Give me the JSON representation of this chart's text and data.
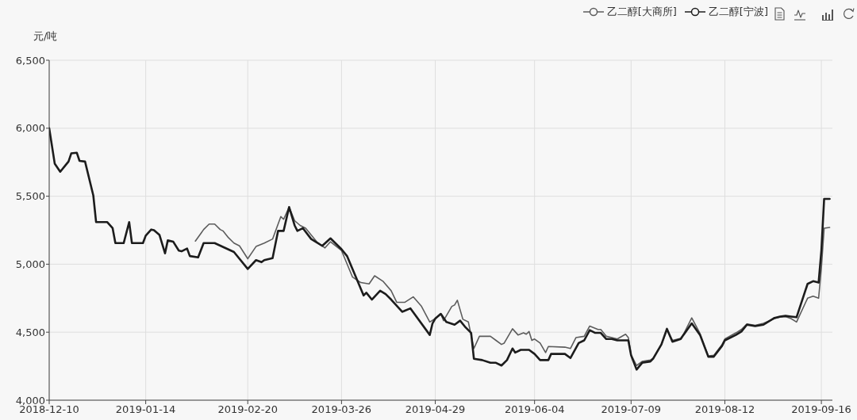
{
  "chart_data": {
    "type": "line",
    "ylabel": "元/吨",
    "xlim": [
      "2018-12-10",
      "2019-09-20"
    ],
    "xticks": [
      "2018-12-10",
      "2019-01-14",
      "2019-02-20",
      "2019-03-26",
      "2019-04-29",
      "2019-06-04",
      "2019-07-09",
      "2019-08-12",
      "2019-09-16"
    ],
    "ylim": [
      4000,
      6500
    ],
    "yticks": [
      {
        "value": 4000,
        "label": "4,000"
      },
      {
        "value": 4500,
        "label": "4,500"
      },
      {
        "value": 5000,
        "label": "5,000"
      },
      {
        "value": 5500,
        "label": "5,500"
      },
      {
        "value": 6000,
        "label": "6,000"
      },
      {
        "value": 6500,
        "label": "6,500"
      }
    ],
    "grid": true,
    "legend": "top right",
    "series": [
      {
        "name": "乙二醇[大商所]",
        "color": "#5c5c5c",
        "x": [
          "2019-02-01",
          "2019-02-04",
          "2019-02-06",
          "2019-02-08",
          "2019-02-10",
          "2019-02-11",
          "2019-02-13",
          "2019-02-15",
          "2019-02-17",
          "2019-02-20",
          "2019-02-23",
          "2019-02-26",
          "2019-03-01",
          "2019-03-04",
          "2019-03-05",
          "2019-03-07",
          "2019-03-09",
          "2019-03-11",
          "2019-03-13",
          "2019-03-17",
          "2019-03-20",
          "2019-03-22",
          "2019-03-26",
          "2019-03-30",
          "2019-04-02",
          "2019-04-05",
          "2019-04-07",
          "2019-04-10",
          "2019-04-13",
          "2019-04-15",
          "2019-04-18",
          "2019-04-21",
          "2019-04-24",
          "2019-04-27",
          "2019-04-29",
          "2019-05-01",
          "2019-05-02",
          "2019-05-05",
          "2019-05-06",
          "2019-05-07",
          "2019-05-09",
          "2019-05-11",
          "2019-05-13",
          "2019-05-15",
          "2019-05-19",
          "2019-05-21",
          "2019-05-23",
          "2019-05-24",
          "2019-05-27",
          "2019-05-29",
          "2019-05-31",
          "2019-06-01",
          "2019-06-02",
          "2019-06-03",
          "2019-06-04",
          "2019-06-06",
          "2019-06-08",
          "2019-06-09",
          "2019-06-15",
          "2019-06-17",
          "2019-06-19",
          "2019-06-22",
          "2019-06-24",
          "2019-06-27",
          "2019-06-28",
          "2019-06-30",
          "2019-07-02",
          "2019-07-04",
          "2019-07-07",
          "2019-07-08",
          "2019-07-09",
          "2019-07-11",
          "2019-07-13",
          "2019-07-16",
          "2019-07-17",
          "2019-07-20",
          "2019-07-22",
          "2019-07-24",
          "2019-07-27",
          "2019-07-28",
          "2019-07-31",
          "2019-08-03",
          "2019-08-06",
          "2019-08-08",
          "2019-08-11",
          "2019-08-12",
          "2019-08-16",
          "2019-08-18",
          "2019-08-20",
          "2019-08-23",
          "2019-08-26",
          "2019-08-30",
          "2019-09-01",
          "2019-09-03",
          "2019-09-05",
          "2019-09-07",
          "2019-09-11",
          "2019-09-13",
          "2019-09-15",
          "2019-09-16",
          "2019-09-17",
          "2019-09-19"
        ],
        "values": [
          5170,
          5255,
          5295,
          5295,
          5255,
          5245,
          5195,
          5155,
          5135,
          5040,
          5130,
          5155,
          5185,
          5350,
          5330,
          5420,
          5320,
          5285,
          5265,
          5165,
          5120,
          5165,
          5100,
          4905,
          4865,
          4855,
          4915,
          4875,
          4805,
          4720,
          4720,
          4760,
          4690,
          4575,
          4600,
          4635,
          4585,
          4690,
          4700,
          4735,
          4595,
          4575,
          4380,
          4470,
          4470,
          4440,
          4410,
          4420,
          4525,
          4480,
          4495,
          4485,
          4505,
          4440,
          4450,
          4420,
          4350,
          4395,
          4390,
          4380,
          4460,
          4470,
          4545,
          4520,
          4520,
          4470,
          4460,
          4450,
          4485,
          4460,
          4335,
          4255,
          4285,
          4295,
          4310,
          4410,
          4515,
          4440,
          4455,
          4485,
          4605,
          4490,
          4325,
          4330,
          4410,
          4450,
          4495,
          4520,
          4560,
          4550,
          4565,
          4600,
          4610,
          4615,
          4600,
          4575,
          4750,
          4765,
          4750,
          4970,
          5265,
          5270
        ]
      },
      {
        "name": "乙二醇[宁波]",
        "color": "#1c1c1c",
        "x": [
          "2018-12-10",
          "2018-12-12",
          "2018-12-14",
          "2018-12-16",
          "2018-12-17",
          "2018-12-18",
          "2018-12-20",
          "2018-12-21",
          "2018-12-23",
          "2018-12-26",
          "2018-12-27",
          "2018-12-31",
          "2019-01-02",
          "2019-01-03",
          "2019-01-06",
          "2019-01-08",
          "2019-01-09",
          "2019-01-13",
          "2019-01-14",
          "2019-01-16",
          "2019-01-17",
          "2019-01-19",
          "2019-01-21",
          "2019-01-22",
          "2019-01-24",
          "2019-01-26",
          "2019-01-27",
          "2019-01-29",
          "2019-01-30",
          "2019-02-02",
          "2019-02-04",
          "2019-02-08",
          "2019-02-15",
          "2019-02-20",
          "2019-02-23",
          "2019-02-25",
          "2019-02-26",
          "2019-03-01",
          "2019-03-03",
          "2019-03-05",
          "2019-03-07",
          "2019-03-09",
          "2019-03-10",
          "2019-03-12",
          "2019-03-15",
          "2019-03-19",
          "2019-03-22",
          "2019-03-26",
          "2019-03-28",
          "2019-04-03",
          "2019-04-04",
          "2019-04-06",
          "2019-04-09",
          "2019-04-11",
          "2019-04-13",
          "2019-04-17",
          "2019-04-20",
          "2019-04-27",
          "2019-04-28",
          "2019-04-29",
          "2019-05-01",
          "2019-05-03",
          "2019-05-06",
          "2019-05-08",
          "2019-05-10",
          "2019-05-12",
          "2019-05-13",
          "2019-05-16",
          "2019-05-19",
          "2019-05-21",
          "2019-05-23",
          "2019-05-25",
          "2019-05-27",
          "2019-05-28",
          "2019-05-30",
          "2019-06-02",
          "2019-06-04",
          "2019-06-06",
          "2019-06-09",
          "2019-06-10",
          "2019-06-15",
          "2019-06-17",
          "2019-06-20",
          "2019-06-22",
          "2019-06-24",
          "2019-06-26",
          "2019-06-28",
          "2019-06-30",
          "2019-07-02",
          "2019-07-04",
          "2019-07-08",
          "2019-07-09",
          "2019-07-11",
          "2019-07-13",
          "2019-07-16",
          "2019-07-17",
          "2019-07-20",
          "2019-07-22",
          "2019-07-24",
          "2019-07-27",
          "2019-07-28",
          "2019-07-31",
          "2019-08-03",
          "2019-08-06",
          "2019-08-08",
          "2019-08-11",
          "2019-08-12",
          "2019-08-16",
          "2019-08-18",
          "2019-08-20",
          "2019-08-23",
          "2019-08-26",
          "2019-08-30",
          "2019-09-01",
          "2019-09-03",
          "2019-09-05",
          "2019-09-07",
          "2019-09-11",
          "2019-09-13",
          "2019-09-15",
          "2019-09-16",
          "2019-09-17",
          "2019-09-19"
        ],
        "values": [
          6000,
          5740,
          5680,
          5730,
          5755,
          5815,
          5820,
          5760,
          5755,
          5505,
          5310,
          5310,
          5265,
          5155,
          5155,
          5310,
          5155,
          5155,
          5210,
          5255,
          5250,
          5215,
          5080,
          5175,
          5165,
          5100,
          5095,
          5115,
          5060,
          5050,
          5155,
          5155,
          5090,
          4965,
          5030,
          5015,
          5030,
          5045,
          5245,
          5245,
          5420,
          5285,
          5245,
          5265,
          5185,
          5135,
          5190,
          5110,
          5060,
          4770,
          4790,
          4740,
          4805,
          4780,
          4740,
          4650,
          4675,
          4480,
          4565,
          4600,
          4635,
          4575,
          4555,
          4585,
          4535,
          4495,
          4305,
          4295,
          4275,
          4275,
          4255,
          4295,
          4380,
          4350,
          4370,
          4370,
          4340,
          4295,
          4295,
          4340,
          4340,
          4310,
          4420,
          4440,
          4515,
          4495,
          4495,
          4450,
          4450,
          4440,
          4440,
          4330,
          4225,
          4275,
          4285,
          4305,
          4410,
          4525,
          4430,
          4450,
          4480,
          4565,
          4480,
          4320,
          4320,
          4400,
          4440,
          4480,
          4505,
          4555,
          4545,
          4555,
          4605,
          4615,
          4620,
          4615,
          4610,
          4855,
          4875,
          4865,
          5100,
          5480,
          5480
        ]
      }
    ]
  }
}
